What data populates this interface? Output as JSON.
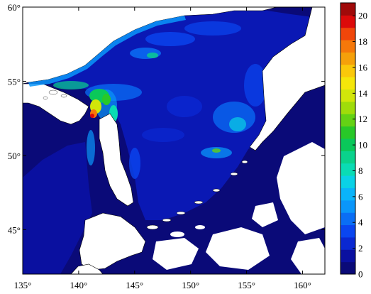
{
  "map": {
    "lon_range": [
      135,
      162
    ],
    "lat_range": [
      42,
      60
    ],
    "lon_ticks": [
      {
        "value": 135,
        "label": "135°"
      },
      {
        "value": 140,
        "label": "140°"
      },
      {
        "value": 145,
        "label": "145°"
      },
      {
        "value": 150,
        "label": "150°"
      },
      {
        "value": 155,
        "label": "155°"
      },
      {
        "value": 160,
        "label": "160°"
      }
    ],
    "lat_ticks": [
      {
        "value": 60,
        "label": "60°"
      },
      {
        "value": 55,
        "label": "55°"
      },
      {
        "value": 50,
        "label": "50°"
      },
      {
        "value": 45,
        "label": "45°"
      }
    ],
    "colors": {
      "ocean_base": "#0a1aa0",
      "ocean_deep": "#0a0a78",
      "land": "#ffffff",
      "coast": "#000000"
    }
  },
  "colorbar": {
    "min": 0,
    "max": 21,
    "labels": [
      {
        "value": 0,
        "label": "0"
      },
      {
        "value": 2,
        "label": "2"
      },
      {
        "value": 4,
        "label": "4"
      },
      {
        "value": 6,
        "label": "6"
      },
      {
        "value": 8,
        "label": "8"
      },
      {
        "value": 10,
        "label": "10"
      },
      {
        "value": 12,
        "label": "12"
      },
      {
        "value": 14,
        "label": "14"
      },
      {
        "value": 16,
        "label": "16"
      },
      {
        "value": 18,
        "label": "18"
      },
      {
        "value": 20,
        "label": "20"
      }
    ],
    "colors": [
      "#0a0a78",
      "#0a10a0",
      "#0a28d2",
      "#0a46f0",
      "#0a6ef5",
      "#0a96fa",
      "#0ab4fa",
      "#0ad2e6",
      "#0adcb4",
      "#0ad28c",
      "#0ac85a",
      "#28c828",
      "#64d214",
      "#a0dc0a",
      "#d2e60a",
      "#f5e60a",
      "#fac80a",
      "#f5a00a",
      "#f5780a",
      "#f0460a",
      "#dc0a0a",
      "#a00a0a"
    ]
  }
}
